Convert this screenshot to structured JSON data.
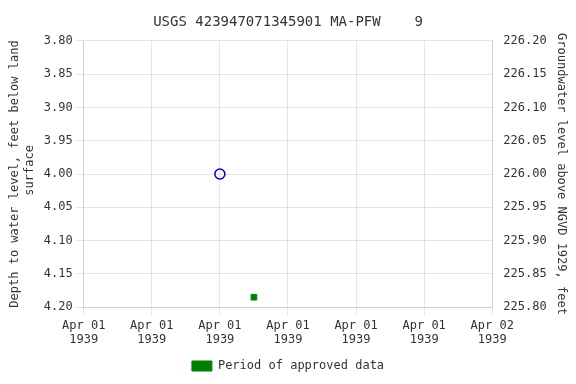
{
  "chart_data": {
    "type": "scatter",
    "title": "USGS 423947071345901 MA-PFW    9",
    "y_label": "Depth to water level, feet below land\n surface",
    "y2_label": "Groundwater level above NGVD 1929, feet",
    "xlim": [
      0,
      36
    ],
    "xticks": [
      {
        "value": 0,
        "label": "Apr 01\n1939"
      },
      {
        "value": 6,
        "label": "Apr 01\n1939"
      },
      {
        "value": 12,
        "label": "Apr 01\n1939"
      },
      {
        "value": 18,
        "label": "Apr 01\n1939"
      },
      {
        "value": 24,
        "label": "Apr 01\n1939"
      },
      {
        "value": 30,
        "label": "Apr 01\n1939"
      },
      {
        "value": 36,
        "label": "Apr 02\n1939"
      }
    ],
    "ylim": [
      4.2,
      3.8
    ],
    "yticks": [
      {
        "value": 3.8,
        "label": "3.80"
      },
      {
        "value": 3.85,
        "label": "3.85"
      },
      {
        "value": 3.9,
        "label": "3.90"
      },
      {
        "value": 3.95,
        "label": "3.95"
      },
      {
        "value": 4.0,
        "label": "4.00"
      },
      {
        "value": 4.05,
        "label": "4.05"
      },
      {
        "value": 4.1,
        "label": "4.10"
      },
      {
        "value": 4.15,
        "label": "4.15"
      },
      {
        "value": 4.2,
        "label": "4.20"
      }
    ],
    "y2lim": [
      225.8,
      226.2
    ],
    "y2ticks": [
      {
        "value": 225.8,
        "label": "225.80"
      },
      {
        "value": 225.85,
        "label": "225.85"
      },
      {
        "value": 225.9,
        "label": "225.90"
      },
      {
        "value": 225.95,
        "label": "225.95"
      },
      {
        "value": 226.0,
        "label": "226.00"
      },
      {
        "value": 226.05,
        "label": "226.05"
      },
      {
        "value": 226.1,
        "label": "226.10"
      },
      {
        "value": 226.15,
        "label": "226.15"
      },
      {
        "value": 226.2,
        "label": "226.20"
      }
    ],
    "series": [
      {
        "x": [
          12
        ],
        "values": [
          4.0
        ],
        "color": "#0000cc",
        "marker": "circle"
      },
      {
        "name": "Period of approved data",
        "x": [
          15
        ],
        "values": [
          4.185
        ],
        "color": "#008000",
        "marker": "square"
      }
    ],
    "grid": true,
    "legend": "bottom"
  }
}
